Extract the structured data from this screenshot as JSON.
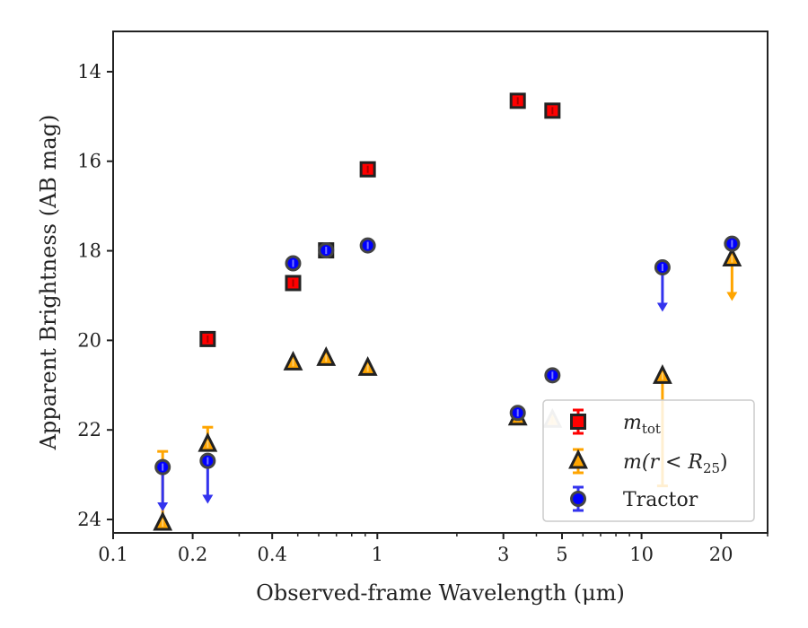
{
  "chart_data": {
    "type": "scatter",
    "xlabel": "Observed-frame Wavelength (μm)",
    "ylabel": "Apparent Brightness (AB mag)",
    "xscale": "log",
    "yaxis_inverted": true,
    "xlim": [
      0.1,
      30
    ],
    "ylim": [
      24.3,
      13.1
    ],
    "x_ticks": [
      0.1,
      0.2,
      0.4,
      1,
      3,
      5,
      10,
      20
    ],
    "x_tick_labels": [
      "0.1",
      "0.2",
      "0.4",
      "1",
      "3",
      "5",
      "10",
      "20"
    ],
    "y_ticks": [
      14,
      16,
      18,
      20,
      22,
      24
    ],
    "y_tick_labels": [
      "14",
      "16",
      "18",
      "20",
      "22",
      "24"
    ],
    "legend_position": "lower-right",
    "series": [
      {
        "name": "m_tot",
        "legend_main": "m",
        "legend_sub": "tot",
        "marker": "square",
        "color": "#ff0000",
        "edge_color": "#222222",
        "points": [
          {
            "x": 0.228,
            "y": 19.97
          },
          {
            "x": 0.48,
            "y": 18.72
          },
          {
            "x": 0.64,
            "y": 17.99
          },
          {
            "x": 0.92,
            "y": 16.18
          },
          {
            "x": 3.4,
            "y": 14.65
          },
          {
            "x": 4.6,
            "y": 14.87
          }
        ]
      },
      {
        "name": "m(r < R_25)",
        "legend_main": "m(r < R",
        "legend_sub": "25",
        "legend_tail": ")",
        "marker": "triangle",
        "color": "#ffa500",
        "edge_color": "#222222",
        "points": [
          {
            "x": 0.154,
            "y": 24.08,
            "err_up": 1.6
          },
          {
            "x": 0.228,
            "y": 22.32,
            "err_up": 0.38
          },
          {
            "x": 0.48,
            "y": 20.5
          },
          {
            "x": 0.64,
            "y": 20.4
          },
          {
            "x": 0.92,
            "y": 20.62
          },
          {
            "x": 3.4,
            "y": 21.73
          },
          {
            "x": 4.6,
            "y": 21.78,
            "faded": true
          },
          {
            "x": 12.0,
            "y": 20.8,
            "err_down": 2.45
          },
          {
            "x": 22.0,
            "y": 18.18,
            "upper_limit_arrow": 0.9
          }
        ]
      },
      {
        "name": "Tractor",
        "legend_main": "Tractor",
        "marker": "circle",
        "color": "#0000ff",
        "edge_color": "#444444",
        "points": [
          {
            "x": 0.154,
            "y": 22.83,
            "upper_limit_arrow": 0.95
          },
          {
            "x": 0.228,
            "y": 22.69,
            "upper_limit_arrow": 0.92
          },
          {
            "x": 0.48,
            "y": 18.28
          },
          {
            "x": 0.64,
            "y": 17.99
          },
          {
            "x": 0.92,
            "y": 17.88
          },
          {
            "x": 3.4,
            "y": 21.62
          },
          {
            "x": 4.6,
            "y": 20.78
          },
          {
            "x": 12.0,
            "y": 18.37,
            "upper_limit_arrow": 0.95
          },
          {
            "x": 22.0,
            "y": 17.84
          }
        ]
      }
    ]
  }
}
